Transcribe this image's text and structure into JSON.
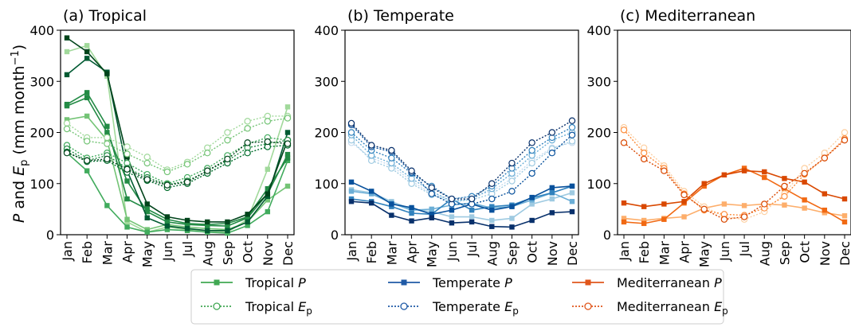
{
  "figure": {
    "ylabel": "P and E_p (mm month⁻¹)",
    "ylabel_parts": {
      "p": "P",
      "and": " and ",
      "e": "E",
      "e_sub": "p",
      "unit_open": " (mm month",
      "unit_sup": "−1",
      "unit_close": ")"
    }
  },
  "legend": {
    "location": "bottom-center",
    "entries": [
      {
        "name": "Tropical",
        "variable": "P",
        "sub": "",
        "color": "#41a853",
        "style": "solid-square"
      },
      {
        "name": "Tropical",
        "variable": "E",
        "sub": "p",
        "color": "#41a853",
        "style": "dotted-circle"
      },
      {
        "name": "Temperate",
        "variable": "P",
        "sub": "",
        "color": "#1f5aa6",
        "style": "solid-square"
      },
      {
        "name": "Temperate",
        "variable": "E",
        "sub": "p",
        "color": "#1f5aa6",
        "style": "dotted-circle"
      },
      {
        "name": "Mediterranean",
        "variable": "P",
        "sub": "",
        "color": "#e0561b",
        "style": "solid-square"
      },
      {
        "name": "Mediterranean",
        "variable": "E",
        "sub": "p",
        "color": "#e0561b",
        "style": "dotted-circle"
      }
    ]
  },
  "chart_data": [
    {
      "type": "line",
      "title": "(a) Tropical",
      "categories": [
        "Jan",
        "Feb",
        "Mar",
        "Apr",
        "May",
        "Jun",
        "Jul",
        "Aug",
        "Sep",
        "Oct",
        "Nov",
        "Dec"
      ],
      "ylim": [
        0,
        400
      ],
      "yticks": [
        0,
        100,
        200,
        300,
        400
      ],
      "grid": false,
      "series": [
        {
          "kind": "P",
          "color": "#a1d99b",
          "values": [
            358,
            370,
            310,
            25,
            5,
            15,
            10,
            8,
            5,
            30,
            128,
            250
          ]
        },
        {
          "kind": "P",
          "color": "#74c476",
          "values": [
            225,
            232,
            185,
            30,
            10,
            20,
            15,
            12,
            10,
            25,
            68,
            95
          ]
        },
        {
          "kind": "P",
          "color": "#41ab5d",
          "values": [
            160,
            125,
            57,
            15,
            5,
            10,
            8,
            5,
            3,
            18,
            45,
            145
          ]
        },
        {
          "kind": "P",
          "color": "#238b45",
          "values": [
            255,
            278,
            212,
            70,
            50,
            30,
            22,
            20,
            22,
            35,
            90,
            150
          ]
        },
        {
          "kind": "P",
          "color": "#238b45",
          "values": [
            252,
            268,
            200,
            105,
            45,
            25,
            20,
            18,
            17,
            33,
            80,
            157
          ]
        },
        {
          "kind": "P",
          "color": "#005a32",
          "values": [
            313,
            345,
            318,
            125,
            33,
            17,
            12,
            8,
            8,
            25,
            75,
            200
          ]
        },
        {
          "kind": "P",
          "color": "#00441b",
          "values": [
            385,
            358,
            315,
            152,
            60,
            35,
            28,
            25,
            25,
            40,
            80,
            185
          ]
        },
        {
          "kind": "Ep",
          "color": "#a1d99b",
          "values": [
            218,
            190,
            190,
            172,
            152,
            127,
            142,
            170,
            200,
            222,
            232,
            232
          ]
        },
        {
          "kind": "Ep",
          "color": "#74c476",
          "values": [
            207,
            183,
            178,
            158,
            140,
            123,
            138,
            160,
            185,
            208,
            222,
            228
          ]
        },
        {
          "kind": "Ep",
          "color": "#41ab5d",
          "values": [
            175,
            150,
            160,
            140,
            118,
            100,
            112,
            130,
            155,
            178,
            190,
            185
          ]
        },
        {
          "kind": "Ep",
          "color": "#238b45",
          "values": [
            168,
            145,
            155,
            130,
            112,
            98,
            105,
            125,
            145,
            170,
            178,
            185
          ]
        },
        {
          "kind": "Ep",
          "color": "#006d2c",
          "values": [
            162,
            143,
            145,
            122,
            106,
            92,
            100,
            120,
            140,
            160,
            172,
            175
          ]
        },
        {
          "kind": "Ep",
          "color": "#00441b",
          "values": [
            160,
            145,
            148,
            128,
            108,
            97,
            103,
            125,
            148,
            180,
            182,
            178
          ]
        }
      ]
    },
    {
      "type": "line",
      "title": "(b) Temperate",
      "categories": [
        "Jan",
        "Feb",
        "Mar",
        "Apr",
        "May",
        "Jun",
        "Jul",
        "Aug",
        "Sep",
        "Oct",
        "Nov",
        "Dec"
      ],
      "ylim": [
        0,
        400
      ],
      "yticks": [
        0,
        100,
        200,
        300,
        400
      ],
      "grid": false,
      "series": [
        {
          "kind": "P",
          "color": "#9ecae1",
          "values": [
            88,
            82,
            65,
            50,
            45,
            35,
            35,
            28,
            32,
            60,
            70,
            82
          ]
        },
        {
          "kind": "P",
          "color": "#6baed6",
          "values": [
            85,
            80,
            62,
            48,
            50,
            58,
            62,
            52,
            55,
            68,
            82,
            65
          ]
        },
        {
          "kind": "P",
          "color": "#3182bd",
          "values": [
            70,
            65,
            55,
            42,
            40,
            70,
            48,
            55,
            58,
            72,
            82,
            95
          ]
        },
        {
          "kind": "P",
          "color": "#08519c",
          "values": [
            103,
            85,
            60,
            53,
            40,
            48,
            60,
            48,
            55,
            73,
            92,
            95
          ]
        },
        {
          "kind": "P",
          "color": "#08306b",
          "values": [
            65,
            62,
            38,
            27,
            33,
            23,
            25,
            16,
            15,
            28,
            43,
            45
          ]
        },
        {
          "kind": "Ep",
          "color": "#c6dbef",
          "values": [
            180,
            150,
            135,
            105,
            80,
            70,
            75,
            85,
            110,
            145,
            170,
            180
          ]
        },
        {
          "kind": "Ep",
          "color": "#9ecae1",
          "values": [
            185,
            145,
            130,
            100,
            78,
            65,
            68,
            80,
            105,
            140,
            168,
            183
          ]
        },
        {
          "kind": "Ep",
          "color": "#6baed6",
          "values": [
            195,
            155,
            140,
            110,
            85,
            65,
            70,
            90,
            120,
            155,
            185,
            200
          ]
        },
        {
          "kind": "Ep",
          "color": "#3182bd",
          "values": [
            200,
            165,
            150,
            120,
            95,
            70,
            75,
            95,
            130,
            165,
            190,
            210
          ]
        },
        {
          "kind": "Ep",
          "color": "#08519c",
          "values": [
            215,
            172,
            162,
            122,
            80,
            60,
            60,
            70,
            85,
            120,
            160,
            195
          ]
        },
        {
          "kind": "Ep",
          "color": "#08306b",
          "values": [
            218,
            175,
            165,
            125,
            92,
            70,
            70,
            100,
            140,
            180,
            200,
            223
          ]
        }
      ]
    },
    {
      "type": "line",
      "title": "(c) Mediterranean",
      "categories": [
        "Jan",
        "Feb",
        "Mar",
        "Apr",
        "May",
        "Jun",
        "Jul",
        "Aug",
        "Sep",
        "Oct",
        "Nov",
        "Dec"
      ],
      "ylim": [
        0,
        400
      ],
      "yticks": [
        0,
        100,
        200,
        300,
        400
      ],
      "grid": false,
      "series": [
        {
          "kind": "P",
          "color": "#fdae6b",
          "values": [
            32,
            28,
            32,
            35,
            52,
            60,
            57,
            60,
            58,
            52,
            43,
            37
          ]
        },
        {
          "kind": "P",
          "color": "#f16913",
          "values": [
            25,
            22,
            30,
            62,
            95,
            117,
            130,
            112,
            90,
            68,
            48,
            25
          ]
        },
        {
          "kind": "P",
          "color": "#d94801",
          "values": [
            62,
            55,
            60,
            65,
            100,
            117,
            125,
            123,
            110,
            103,
            80,
            70
          ]
        },
        {
          "kind": "Ep",
          "color": "#fdd0a2",
          "values": [
            210,
            170,
            135,
            85,
            55,
            35,
            30,
            45,
            80,
            130,
            160,
            200
          ]
        },
        {
          "kind": "Ep",
          "color": "#fd8d3c",
          "values": [
            205,
            160,
            130,
            80,
            48,
            40,
            38,
            52,
            75,
            118,
            150,
            188
          ]
        },
        {
          "kind": "Ep",
          "color": "#d94801",
          "values": [
            180,
            148,
            125,
            78,
            50,
            30,
            35,
            60,
            95,
            120,
            150,
            185
          ]
        }
      ]
    }
  ]
}
